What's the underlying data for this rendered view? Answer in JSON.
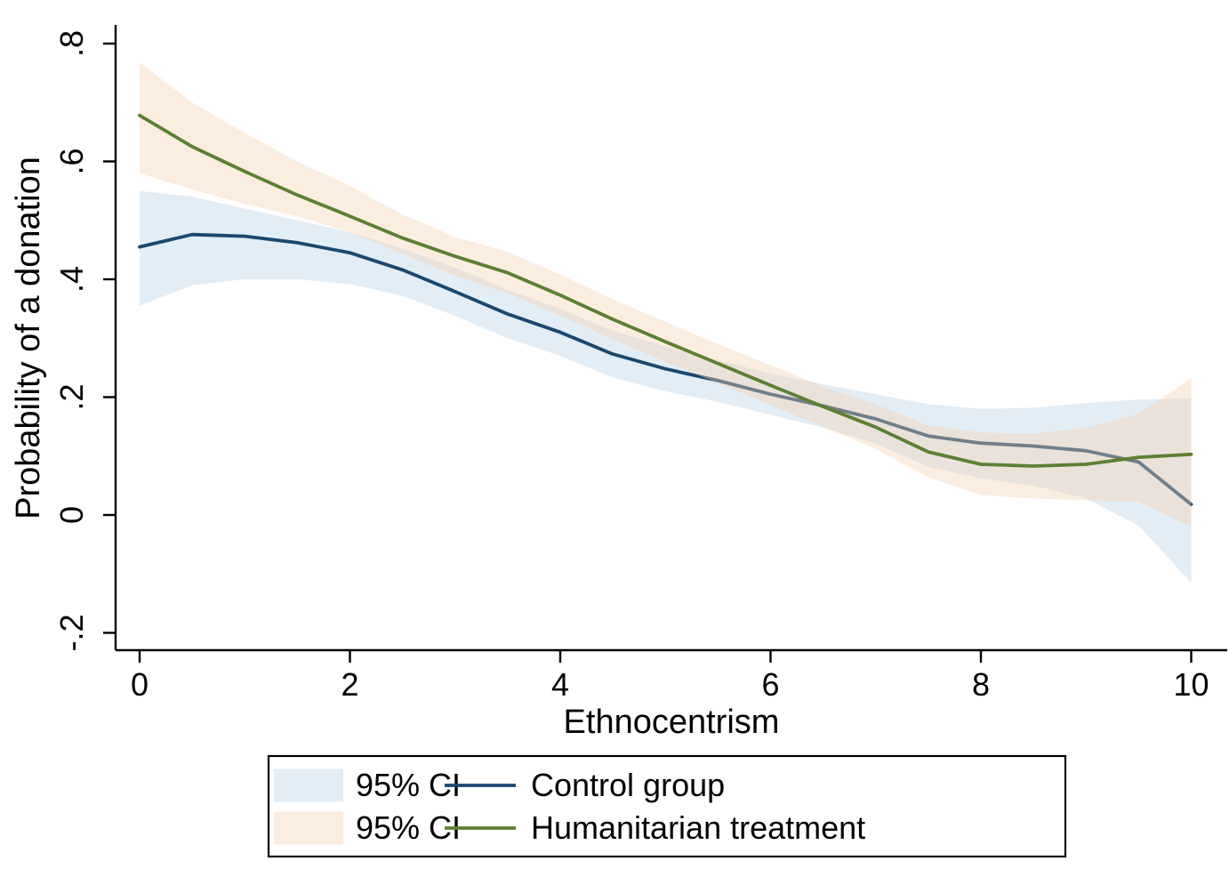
{
  "chart_data": {
    "type": "line",
    "title": "",
    "xlabel": "Ethnocentrism",
    "ylabel": "Probability of a donation",
    "xlim": [
      0,
      10
    ],
    "ylim": [
      -0.2,
      0.8
    ],
    "grid": false,
    "legend_position": "bottom",
    "axis_color": "#000000",
    "x_ticks": {
      "values": [
        0,
        2,
        4,
        6,
        8,
        10
      ],
      "labels": [
        "0",
        "2",
        "4",
        "6",
        "8",
        "10"
      ]
    },
    "y_ticks": {
      "values": [
        0.8,
        0.6,
        0.4,
        0.2,
        0,
        -0.2
      ],
      "labels": [
        ".8",
        ".6",
        ".4",
        ".2",
        "0",
        "-.2"
      ]
    },
    "x": [
      0,
      0.5,
      1,
      1.5,
      2,
      2.5,
      3,
      3.5,
      4,
      4.5,
      5,
      5.5,
      6,
      6.5,
      7,
      7.5,
      8,
      8.5,
      9,
      9.5,
      10
    ],
    "series": [
      {
        "name": "Control group",
        "ci_label": "95% CI",
        "line_color": "#1a476f",
        "band_color": "#bdd3e6",
        "band_opacity": 0.42,
        "values": [
          0.455,
          0.476,
          0.473,
          0.462,
          0.445,
          0.416,
          0.379,
          0.341,
          0.31,
          0.273,
          0.248,
          0.228,
          0.205,
          0.185,
          0.163,
          0.134,
          0.122,
          0.117,
          0.109,
          0.09,
          0.018
        ],
        "ci_upper": [
          0.55,
          0.54,
          0.52,
          0.5,
          0.48,
          0.452,
          0.42,
          0.382,
          0.35,
          0.313,
          0.286,
          0.263,
          0.24,
          0.222,
          0.205,
          0.188,
          0.18,
          0.182,
          0.19,
          0.196,
          0.198
        ],
        "ci_lower": [
          0.355,
          0.39,
          0.4,
          0.4,
          0.392,
          0.372,
          0.338,
          0.3,
          0.27,
          0.233,
          0.21,
          0.192,
          0.17,
          0.148,
          0.121,
          0.082,
          0.062,
          0.05,
          0.028,
          -0.018,
          -0.115
        ]
      },
      {
        "name": "Humanitarian treatment",
        "ci_label": "95% CI",
        "line_color": "#5c7f33",
        "band_color": "#f4d3b2",
        "band_opacity": 0.4,
        "values": [
          0.678,
          0.625,
          0.583,
          0.543,
          0.507,
          0.47,
          0.439,
          0.411,
          0.373,
          0.332,
          0.294,
          0.257,
          0.22,
          0.184,
          0.149,
          0.107,
          0.086,
          0.083,
          0.086,
          0.098,
          0.103
        ],
        "ci_upper": [
          0.768,
          0.7,
          0.648,
          0.6,
          0.558,
          0.51,
          0.472,
          0.446,
          0.408,
          0.366,
          0.328,
          0.29,
          0.254,
          0.218,
          0.188,
          0.152,
          0.14,
          0.138,
          0.148,
          0.172,
          0.232
        ],
        "ci_lower": [
          0.58,
          0.552,
          0.528,
          0.507,
          0.48,
          0.443,
          0.406,
          0.376,
          0.338,
          0.298,
          0.26,
          0.224,
          0.186,
          0.15,
          0.112,
          0.064,
          0.034,
          0.028,
          0.025,
          0.022,
          -0.02
        ]
      }
    ]
  }
}
